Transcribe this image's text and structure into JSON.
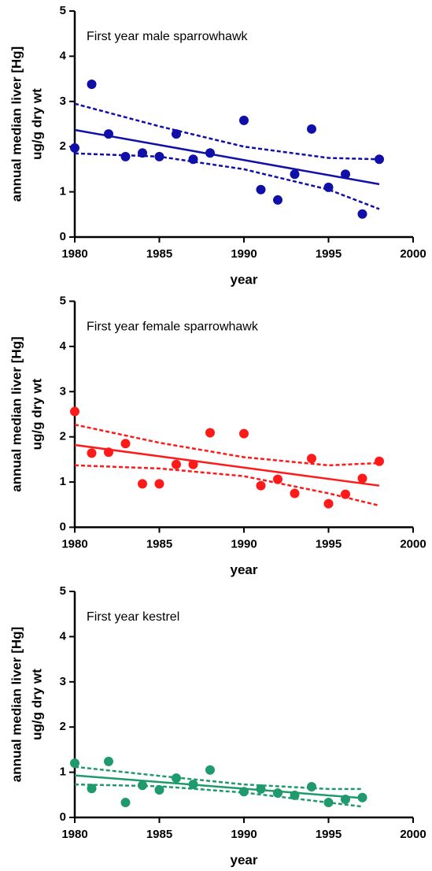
{
  "chart_data": [
    {
      "type": "scatter",
      "title": "First year male sparrowhawk",
      "xlabel": "year",
      "ylabel": [
        "annual median liver [Hg]",
        "ug/g dry wt"
      ],
      "xlim": [
        1980,
        2000
      ],
      "ylim": [
        0,
        5
      ],
      "xticks": [
        1980,
        1985,
        1990,
        1995,
        2000
      ],
      "yticks": [
        0,
        1,
        2,
        3,
        4,
        5
      ],
      "color": "#1010a8",
      "x": [
        1980,
        1981,
        1982,
        1983,
        1984,
        1985,
        1986,
        1987,
        1988,
        1990,
        1991,
        1992,
        1993,
        1994,
        1995,
        1996,
        1997,
        1998
      ],
      "values": [
        1.97,
        3.38,
        2.28,
        1.78,
        1.86,
        1.78,
        2.28,
        1.72,
        1.86,
        2.58,
        1.05,
        0.82,
        1.39,
        2.39,
        1.1,
        1.39,
        0.51,
        1.72
      ],
      "fit": {
        "x": [
          1980,
          1998
        ],
        "values": [
          2.37,
          1.17
        ]
      },
      "ci_upper": {
        "x": [
          1980,
          1985,
          1990,
          1995,
          1998
        ],
        "values": [
          2.95,
          2.45,
          2.0,
          1.75,
          1.72
        ]
      },
      "ci_lower": {
        "x": [
          1980,
          1985,
          1990,
          1995,
          1998
        ],
        "values": [
          1.85,
          1.78,
          1.5,
          1.05,
          0.62
        ]
      }
    },
    {
      "type": "scatter",
      "title": "First year female sparrowhawk",
      "xlabel": "year",
      "ylabel": [
        "annual median liver [Hg]",
        "ug/g dry wt"
      ],
      "xlim": [
        1980,
        2000
      ],
      "ylim": [
        0,
        5
      ],
      "xticks": [
        1980,
        1985,
        1990,
        1995,
        2000
      ],
      "yticks": [
        0,
        1,
        2,
        3,
        4,
        5
      ],
      "color": "#ff1a1a",
      "x": [
        1980,
        1981,
        1982,
        1983,
        1984,
        1985,
        1986,
        1987,
        1988,
        1990,
        1991,
        1992,
        1993,
        1994,
        1995,
        1996,
        1997,
        1998
      ],
      "values": [
        2.56,
        1.64,
        1.66,
        1.85,
        0.96,
        0.96,
        1.39,
        1.39,
        2.09,
        2.07,
        0.92,
        1.06,
        0.75,
        1.52,
        0.52,
        0.73,
        1.08,
        1.46
      ],
      "fit": {
        "x": [
          1980,
          1998
        ],
        "values": [
          1.82,
          0.92
        ]
      },
      "ci_upper": {
        "x": [
          1980,
          1985,
          1990,
          1995,
          1998
        ],
        "values": [
          2.27,
          1.87,
          1.55,
          1.37,
          1.42
        ]
      },
      "ci_lower": {
        "x": [
          1980,
          1985,
          1990,
          1995,
          1998
        ],
        "values": [
          1.37,
          1.3,
          1.13,
          0.75,
          0.48
        ]
      }
    },
    {
      "type": "scatter",
      "title": "First year kestrel",
      "xlabel": "year",
      "ylabel": [
        "annual median liver [Hg]",
        "ug/g dry wt"
      ],
      "xlim": [
        1980,
        2000
      ],
      "ylim": [
        0,
        5
      ],
      "xticks": [
        1980,
        1985,
        1990,
        1995,
        2000
      ],
      "yticks": [
        0,
        1,
        2,
        3,
        4,
        5
      ],
      "color": "#1f9a6c",
      "x": [
        1980,
        1981,
        1982,
        1983,
        1984,
        1985,
        1986,
        1987,
        1988,
        1990,
        1991,
        1992,
        1993,
        1994,
        1995,
        1996,
        1997
      ],
      "values": [
        1.2,
        0.64,
        1.24,
        0.33,
        0.71,
        0.61,
        0.87,
        0.73,
        1.05,
        0.57,
        0.63,
        0.54,
        0.49,
        0.68,
        0.33,
        0.4,
        0.44
      ],
      "fit": {
        "x": [
          1980,
          1997
        ],
        "values": [
          0.93,
          0.43
        ]
      },
      "ci_upper": {
        "x": [
          1980,
          1985,
          1990,
          1995,
          1997
        ],
        "values": [
          1.12,
          0.92,
          0.73,
          0.63,
          0.63
        ]
      },
      "ci_lower": {
        "x": [
          1980,
          1985,
          1990,
          1995,
          1997
        ],
        "values": [
          0.73,
          0.69,
          0.55,
          0.33,
          0.24
        ]
      }
    }
  ]
}
